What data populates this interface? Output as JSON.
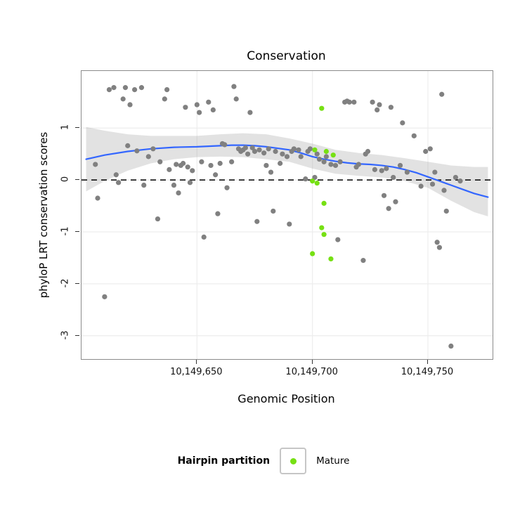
{
  "title": "Conservation",
  "x_axis": {
    "label": "Genomic Position",
    "ticks": [
      {
        "value": 10149650,
        "label": "10,149,650"
      },
      {
        "value": 10149700,
        "label": "10,149,700"
      },
      {
        "value": 10149750,
        "label": "10,149,750"
      }
    ]
  },
  "y_axis": {
    "label": "phyloP LRT conservation scores",
    "ticks": [
      {
        "value": 1,
        "label": "1"
      },
      {
        "value": 0,
        "label": "0"
      },
      {
        "value": -1,
        "label": "-1"
      },
      {
        "value": -2,
        "label": "-2"
      },
      {
        "value": -3,
        "label": "-3"
      }
    ]
  },
  "legend": {
    "title": "Hairpin partition",
    "items": [
      {
        "label": "Mature",
        "color": "#76E013"
      }
    ]
  },
  "colors": {
    "background_points": "#808080",
    "mature_points": "#76E013",
    "smooth_line": "#3366FF",
    "ci_band": "#9e9e9e",
    "grid": "#ededed",
    "reference_line": "#000000"
  },
  "chart_data": {
    "type": "scatter",
    "title": "Conservation",
    "xlabel": "Genomic Position",
    "ylabel": "phyloP LRT conservation scores",
    "xlim": [
      10149600,
      10149778
    ],
    "ylim": [
      -3.45,
      2.1
    ],
    "grid": true,
    "legend_position": "bottom",
    "reference_line": {
      "y": 0,
      "style": "dashed"
    },
    "series": [
      {
        "name": "conservation-scores",
        "color": "#808080",
        "points": [
          [
            10149606,
            0.3
          ],
          [
            10149607,
            -0.35
          ],
          [
            10149610,
            -2.25
          ],
          [
            10149612,
            1.74
          ],
          [
            10149614,
            1.78
          ],
          [
            10149615,
            0.1
          ],
          [
            10149616,
            -0.05
          ],
          [
            10149618,
            1.56
          ],
          [
            10149619,
            1.78
          ],
          [
            10149620,
            0.66
          ],
          [
            10149621,
            1.45
          ],
          [
            10149623,
            1.74
          ],
          [
            10149624,
            0.56
          ],
          [
            10149626,
            1.78
          ],
          [
            10149627,
            -0.1
          ],
          [
            10149629,
            0.45
          ],
          [
            10149631,
            0.6
          ],
          [
            10149633,
            -0.75
          ],
          [
            10149634,
            0.35
          ],
          [
            10149636,
            1.56
          ],
          [
            10149637,
            1.74
          ],
          [
            10149638,
            0.2
          ],
          [
            10149640,
            -0.1
          ],
          [
            10149641,
            0.3
          ],
          [
            10149642,
            -0.25
          ],
          [
            10149643,
            0.28
          ],
          [
            10149644,
            0.32
          ],
          [
            10149645,
            1.4
          ],
          [
            10149646,
            0.25
          ],
          [
            10149647,
            -0.05
          ],
          [
            10149648,
            0.18
          ],
          [
            10149650,
            1.45
          ],
          [
            10149651,
            1.3
          ],
          [
            10149652,
            0.35
          ],
          [
            10149653,
            -1.1
          ],
          [
            10149655,
            1.5
          ],
          [
            10149656,
            0.28
          ],
          [
            10149657,
            1.35
          ],
          [
            10149658,
            0.1
          ],
          [
            10149659,
            -0.65
          ],
          [
            10149660,
            0.32
          ],
          [
            10149661,
            0.7
          ],
          [
            10149662,
            0.68
          ],
          [
            10149663,
            -0.15
          ],
          [
            10149665,
            0.35
          ],
          [
            10149666,
            1.8
          ],
          [
            10149667,
            1.56
          ],
          [
            10149668,
            0.6
          ],
          [
            10149669,
            0.55
          ],
          [
            10149670,
            0.58
          ],
          [
            10149671,
            0.62
          ],
          [
            10149672,
            0.5
          ],
          [
            10149673,
            1.3
          ],
          [
            10149674,
            0.62
          ],
          [
            10149675,
            0.55
          ],
          [
            10149676,
            -0.8
          ],
          [
            10149677,
            0.58
          ],
          [
            10149679,
            0.52
          ],
          [
            10149680,
            0.28
          ],
          [
            10149681,
            0.6
          ],
          [
            10149682,
            0.15
          ],
          [
            10149683,
            -0.6
          ],
          [
            10149684,
            0.55
          ],
          [
            10149686,
            0.32
          ],
          [
            10149687,
            0.5
          ],
          [
            10149689,
            0.45
          ],
          [
            10149690,
            -0.85
          ],
          [
            10149691,
            0.55
          ],
          [
            10149692,
            0.6
          ],
          [
            10149694,
            0.58
          ],
          [
            10149695,
            0.45
          ],
          [
            10149697,
            0.02
          ],
          [
            10149698,
            0.55
          ],
          [
            10149699,
            0.6
          ],
          [
            10149701,
            0.05
          ],
          [
            10149702,
            0.5
          ],
          [
            10149703,
            0.4
          ],
          [
            10149705,
            0.35
          ],
          [
            10149706,
            0.45
          ],
          [
            10149708,
            0.3
          ],
          [
            10149710,
            0.28
          ],
          [
            10149711,
            -1.15
          ],
          [
            10149712,
            0.35
          ],
          [
            10149714,
            1.5
          ],
          [
            10149715,
            1.52
          ],
          [
            10149716,
            1.5
          ],
          [
            10149718,
            1.5
          ],
          [
            10149719,
            0.25
          ],
          [
            10149720,
            0.3
          ],
          [
            10149722,
            -1.55
          ],
          [
            10149723,
            0.5
          ],
          [
            10149724,
            0.55
          ],
          [
            10149726,
            1.5
          ],
          [
            10149727,
            0.2
          ],
          [
            10149728,
            1.35
          ],
          [
            10149729,
            1.45
          ],
          [
            10149730,
            0.18
          ],
          [
            10149731,
            -0.3
          ],
          [
            10149732,
            0.22
          ],
          [
            10149733,
            -0.55
          ],
          [
            10149734,
            1.4
          ],
          [
            10149735,
            0.05
          ],
          [
            10149736,
            -0.42
          ],
          [
            10149738,
            0.28
          ],
          [
            10149739,
            1.1
          ],
          [
            10149741,
            0.15
          ],
          [
            10149744,
            0.85
          ],
          [
            10149747,
            -0.12
          ],
          [
            10149749,
            0.55
          ],
          [
            10149751,
            0.6
          ],
          [
            10149752,
            -0.08
          ],
          [
            10149753,
            0.15
          ],
          [
            10149754,
            -1.2
          ],
          [
            10149755,
            -1.3
          ],
          [
            10149756,
            1.65
          ],
          [
            10149757,
            -0.2
          ],
          [
            10149758,
            -0.6
          ],
          [
            10149760,
            -3.2
          ],
          [
            10149762,
            0.05
          ],
          [
            10149764,
            -0.02
          ]
        ]
      },
      {
        "name": "Mature",
        "color": "#76E013",
        "points": [
          [
            10149704,
            1.38
          ],
          [
            10149701,
            0.58
          ],
          [
            10149706,
            0.55
          ],
          [
            10149709,
            0.48
          ],
          [
            10149700,
            -0.02
          ],
          [
            10149702,
            -0.06
          ],
          [
            10149705,
            -0.45
          ],
          [
            10149704,
            -0.92
          ],
          [
            10149705,
            -1.05
          ],
          [
            10149700,
            -1.42
          ],
          [
            10149708,
            -1.52
          ]
        ]
      }
    ],
    "smooth": {
      "color": "#3366FF",
      "points": [
        [
          10149602,
          0.4
        ],
        [
          10149610,
          0.48
        ],
        [
          10149620,
          0.55
        ],
        [
          10149630,
          0.6
        ],
        [
          10149640,
          0.63
        ],
        [
          10149650,
          0.64
        ],
        [
          10149660,
          0.66
        ],
        [
          10149665,
          0.67
        ],
        [
          10149670,
          0.67
        ],
        [
          10149675,
          0.66
        ],
        [
          10149680,
          0.64
        ],
        [
          10149690,
          0.58
        ],
        [
          10149695,
          0.52
        ],
        [
          10149700,
          0.45
        ],
        [
          10149705,
          0.4
        ],
        [
          10149710,
          0.36
        ],
        [
          10149715,
          0.33
        ],
        [
          10149720,
          0.31
        ],
        [
          10149725,
          0.3
        ],
        [
          10149730,
          0.28
        ],
        [
          10149735,
          0.25
        ],
        [
          10149740,
          0.2
        ],
        [
          10149745,
          0.14
        ],
        [
          10149750,
          0.06
        ],
        [
          10149755,
          -0.02
        ],
        [
          10149760,
          -0.1
        ],
        [
          10149765,
          -0.18
        ],
        [
          10149770,
          -0.26
        ],
        [
          10149776,
          -0.33
        ]
      ]
    },
    "ci_band": {
      "color": "#9e9e9e",
      "opacity": 0.3,
      "upper": [
        [
          10149602,
          1.02
        ],
        [
          10149610,
          0.95
        ],
        [
          10149620,
          0.88
        ],
        [
          10149630,
          0.85
        ],
        [
          10149640,
          0.85
        ],
        [
          10149650,
          0.85
        ],
        [
          10149660,
          0.88
        ],
        [
          10149670,
          0.9
        ],
        [
          10149680,
          0.88
        ],
        [
          10149690,
          0.8
        ],
        [
          10149700,
          0.7
        ],
        [
          10149710,
          0.58
        ],
        [
          10149720,
          0.52
        ],
        [
          10149730,
          0.48
        ],
        [
          10149740,
          0.42
        ],
        [
          10149750,
          0.35
        ],
        [
          10149760,
          0.28
        ],
        [
          10149770,
          0.25
        ],
        [
          10149776,
          0.25
        ]
      ],
      "lower": [
        [
          10149602,
          -0.22
        ],
        [
          10149610,
          -0.02
        ],
        [
          10149620,
          0.18
        ],
        [
          10149630,
          0.32
        ],
        [
          10149640,
          0.4
        ],
        [
          10149650,
          0.44
        ],
        [
          10149660,
          0.45
        ],
        [
          10149670,
          0.44
        ],
        [
          10149680,
          0.4
        ],
        [
          10149690,
          0.35
        ],
        [
          10149700,
          0.22
        ],
        [
          10149710,
          0.12
        ],
        [
          10149720,
          0.08
        ],
        [
          10149730,
          0.05
        ],
        [
          10149740,
          -0.02
        ],
        [
          10149750,
          -0.15
        ],
        [
          10149760,
          -0.4
        ],
        [
          10149770,
          -0.62
        ],
        [
          10149776,
          -0.7
        ]
      ]
    }
  }
}
